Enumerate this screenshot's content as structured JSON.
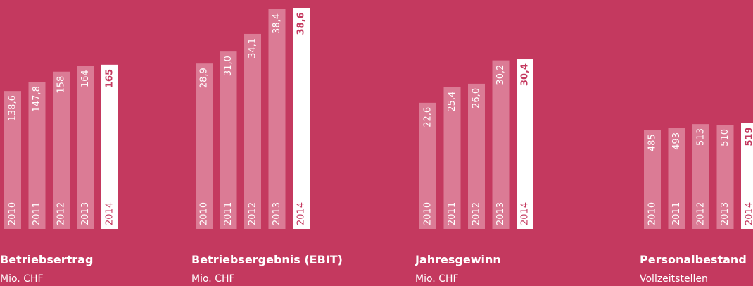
{
  "chart_data": [
    {
      "type": "bar",
      "title": "Betriebsertrag",
      "subtitle": "Mio. CHF",
      "categories": [
        "2010",
        "2011",
        "2012",
        "2013",
        "2014"
      ],
      "values": [
        138.6,
        147.8,
        158,
        164,
        165
      ],
      "value_labels": [
        "138,6",
        "147,8",
        "158",
        "164",
        "165"
      ],
      "colors": [
        "#db7b95",
        "#db7b95",
        "#db7b95",
        "#db7b95",
        "#ffffff"
      ],
      "ylim": [
        0,
        230
      ]
    },
    {
      "type": "bar",
      "title": "Betriebsergebnis (EBIT)",
      "subtitle": "Mio. CHF",
      "categories": [
        "2010",
        "2011",
        "2012",
        "2013",
        "2014"
      ],
      "values": [
        28.9,
        31.0,
        34.1,
        38.4,
        38.6
      ],
      "value_labels": [
        "28,9",
        "31,0",
        "34,1",
        "38,4",
        "38,6"
      ],
      "colors": [
        "#db7b95",
        "#db7b95",
        "#db7b95",
        "#db7b95",
        "#ffffff"
      ],
      "ylim": [
        0,
        40
      ]
    },
    {
      "type": "bar",
      "title": "Jahresgewinn",
      "subtitle": "Mio. CHF",
      "categories": [
        "2010",
        "2011",
        "2012",
        "2013",
        "2014"
      ],
      "values": [
        22.6,
        25.4,
        26.0,
        30.2,
        30.4
      ],
      "value_labels": [
        "22,6",
        "25,4",
        "26,0",
        "30,2",
        "30,4"
      ],
      "colors": [
        "#db7b95",
        "#db7b95",
        "#db7b95",
        "#db7b95",
        "#ffffff"
      ],
      "ylim": [
        0,
        41
      ]
    },
    {
      "type": "bar",
      "title": "Personalbestand",
      "subtitle": "Vollzeitstellen",
      "categories": [
        "2010",
        "2011",
        "2012",
        "2013",
        "2014"
      ],
      "values": [
        485,
        493,
        513,
        510,
        519
      ],
      "colors": [
        "#db7b95",
        "#db7b95",
        "#db7b95",
        "#db7b95",
        "#ffffff"
      ],
      "ylim": [
        0,
        1120
      ]
    }
  ]
}
